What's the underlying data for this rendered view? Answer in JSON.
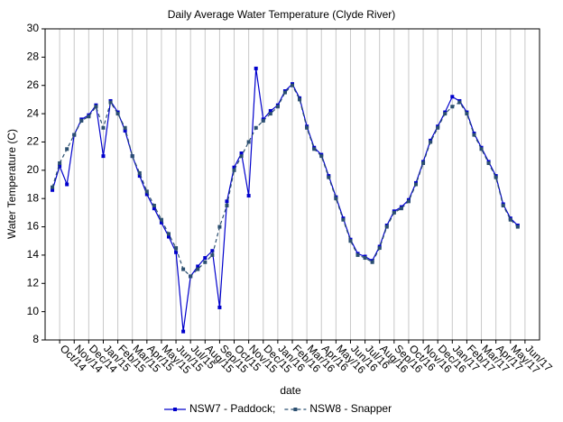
{
  "chart_data": {
    "type": "line",
    "title": "Daily Average Water Temperature (Clyde River)",
    "x_label": "date",
    "y_label": "Water Temperature (C)",
    "categories": [
      null,
      "Oct/14",
      null,
      "Nov/14",
      null,
      "Dec/14",
      null,
      "Jan/15",
      null,
      "Feb/15",
      null,
      "Mar/15",
      null,
      "Apr/15",
      null,
      "May/15",
      null,
      "Jun/15",
      null,
      "Jul/15",
      null,
      "Aug/15",
      null,
      "Sep/15",
      null,
      "Oct/15",
      null,
      "Nov/15",
      null,
      "Dec/15",
      null,
      "Jan/16",
      null,
      "Feb/16",
      null,
      "Mar/16",
      null,
      "Apr/16",
      null,
      "May/16",
      null,
      "Jun/16",
      null,
      "Jul/16",
      null,
      "Aug/16",
      null,
      "Sep/16",
      null,
      "Oct/16",
      null,
      "Nov/16",
      null,
      "Dec/16",
      null,
      "Jan/17",
      null,
      "Feb/17",
      null,
      "Mar/17",
      null,
      "Apr/17",
      null,
      "May/17",
      null,
      "Jun/17"
    ],
    "series": [
      {
        "name": "NSW7 - Paddock;",
        "color": "#0000cc",
        "dash": false,
        "values": [
          18.6,
          20.3,
          19.0,
          22.5,
          23.6,
          23.9,
          24.6,
          21.0,
          24.9,
          24.1,
          22.8,
          21.0,
          19.6,
          18.3,
          17.3,
          16.3,
          15.3,
          14.2,
          8.6,
          12.5,
          13.2,
          13.8,
          14.3,
          10.3,
          17.8,
          20.2,
          21.2,
          18.2,
          27.2,
          23.6,
          24.2,
          24.6,
          25.6,
          26.1,
          25.1,
          23.1,
          21.6,
          21.1,
          19.6,
          18.1,
          16.6,
          15.1,
          14.1,
          13.9,
          13.6,
          14.6,
          16.1,
          17.1,
          17.4,
          17.9,
          19.1,
          20.6,
          22.1,
          23.1,
          24.1,
          25.2,
          24.9,
          24.1,
          22.6,
          21.6,
          20.6,
          19.6,
          17.6,
          16.6,
          16.1,
          null
        ]
      },
      {
        "name": "NSW8 - Snapper",
        "color": "#2b4f70",
        "dash": true,
        "values": [
          18.8,
          20.5,
          21.5,
          22.5,
          23.5,
          23.8,
          24.5,
          23.0,
          24.8,
          24.0,
          23.0,
          21.0,
          19.8,
          18.5,
          17.5,
          16.5,
          15.5,
          14.5,
          13.0,
          12.5,
          13.0,
          13.5,
          14.0,
          16.0,
          17.5,
          20.0,
          21.0,
          22.0,
          23.0,
          23.5,
          24.0,
          24.5,
          25.5,
          26.0,
          25.0,
          23.0,
          21.5,
          21.0,
          19.5,
          18.0,
          16.5,
          15.0,
          14.0,
          13.8,
          13.5,
          14.5,
          16.0,
          17.0,
          17.3,
          17.8,
          19.0,
          20.5,
          22.0,
          23.0,
          24.0,
          24.5,
          24.8,
          24.0,
          22.5,
          21.5,
          20.5,
          19.5,
          17.5,
          16.5,
          16.0,
          null
        ]
      }
    ],
    "ylim": [
      8,
      30
    ],
    "yticks": [
      8,
      10,
      12,
      14,
      16,
      18,
      20,
      22,
      24,
      26,
      28,
      30
    ],
    "grid": true,
    "legend": "bottom"
  }
}
